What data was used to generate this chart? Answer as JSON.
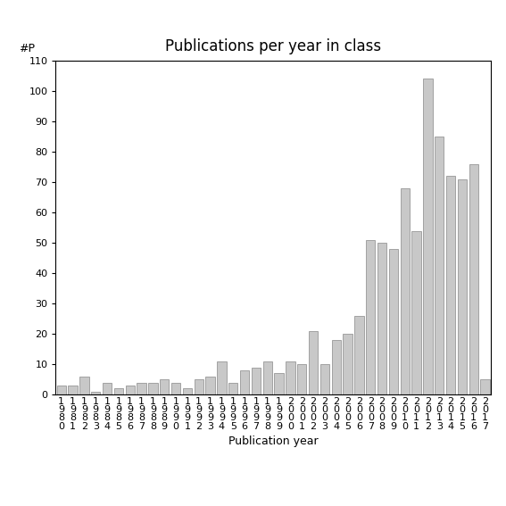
{
  "title": "Publications per year in class",
  "xlabel": "Publication year",
  "ylabel": "#P",
  "ylim": [
    0,
    110
  ],
  "yticks": [
    0,
    10,
    20,
    30,
    40,
    50,
    60,
    70,
    80,
    90,
    100,
    110
  ],
  "bar_color": "#c8c8c8",
  "bar_edge_color": "#888888",
  "categories": [
    "1\n9\n8\n0",
    "1\n9\n8\n1",
    "1\n9\n8\n2",
    "1\n9\n8\n3",
    "1\n9\n8\n4",
    "1\n9\n8\n5",
    "1\n9\n8\n6",
    "1\n9\n8\n7",
    "1\n9\n8\n8",
    "1\n9\n8\n9",
    "1\n9\n9\n0",
    "1\n9\n9\n1",
    "1\n9\n9\n2",
    "1\n9\n9\n3",
    "1\n9\n9\n4",
    "1\n9\n9\n5",
    "1\n9\n9\n6",
    "1\n9\n9\n7",
    "1\n9\n9\n8",
    "1\n9\n9\n9",
    "2\n0\n0\n0",
    "2\n0\n0\n1",
    "2\n0\n0\n2",
    "2\n0\n0\n3",
    "2\n0\n0\n4",
    "2\n0\n0\n5",
    "2\n0\n0\n6",
    "2\n0\n0\n7",
    "2\n0\n0\n8",
    "2\n0\n0\n9",
    "2\n0\n1\n0",
    "2\n0\n1\n1",
    "2\n0\n1\n2",
    "2\n0\n1\n3",
    "2\n0\n1\n4",
    "2\n0\n1\n5",
    "2\n0\n1\n6",
    "2\n0\n1\n7"
  ],
  "values": [
    3,
    3,
    6,
    1,
    4,
    2,
    3,
    4,
    4,
    5,
    4,
    2,
    5,
    6,
    11,
    4,
    8,
    9,
    11,
    7,
    11,
    10,
    21,
    10,
    18,
    20,
    26,
    51,
    50,
    48,
    68,
    54,
    104,
    85,
    72,
    71,
    76,
    5
  ],
  "background_color": "#ffffff",
  "title_fontsize": 12,
  "axis_fontsize": 9,
  "tick_fontsize": 8
}
